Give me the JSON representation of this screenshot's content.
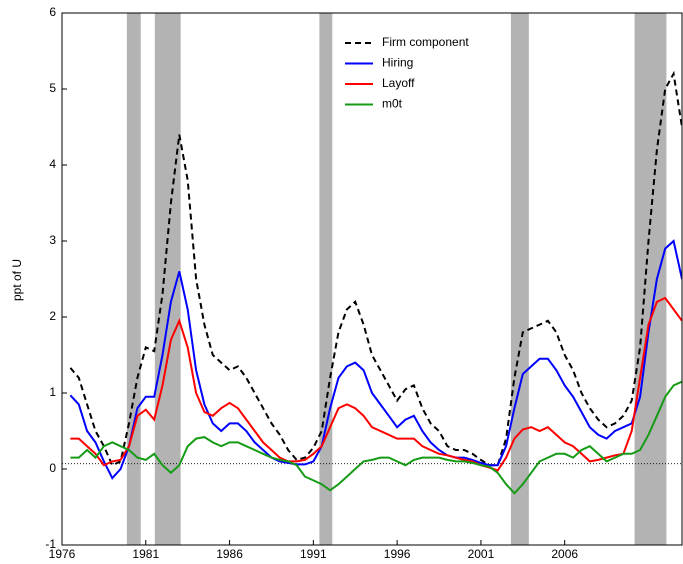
{
  "chart_data": {
    "type": "line",
    "ylabel": "ppt of U",
    "xlim": [
      1976,
      2013
    ],
    "ylim": [
      -1,
      6
    ],
    "xticks": [
      1976,
      1981,
      1986,
      1991,
      1996,
      2001,
      2006
    ],
    "yticks": [
      -1,
      0,
      1,
      2,
      3,
      4,
      5,
      6
    ],
    "shaded_regions": [
      [
        1979.87,
        1980.7
      ],
      [
        1981.54,
        1983.08
      ],
      [
        1991.36,
        1992.13
      ],
      [
        2002.79,
        2003.86
      ],
      [
        2010.17,
        2012.07
      ]
    ],
    "shade_color": "#b3b3b3",
    "hline": 0.07,
    "x": [
      1976.5,
      1977,
      1977.5,
      1978,
      1978.5,
      1979,
      1979.5,
      1980,
      1980.5,
      1981,
      1981.5,
      1982,
      1982.5,
      1983,
      1983.5,
      1984,
      1984.5,
      1985,
      1985.5,
      1986,
      1986.5,
      1987,
      1987.5,
      1988,
      1988.5,
      1989,
      1989.5,
      1990,
      1990.5,
      1991,
      1991.5,
      1992,
      1992.5,
      1993,
      1993.5,
      1994,
      1994.5,
      1995,
      1995.5,
      1996,
      1996.5,
      1997,
      1997.5,
      1998,
      1998.5,
      1999,
      1999.5,
      2000,
      2000.5,
      2001,
      2001.5,
      2002,
      2002.5,
      2003,
      2003.5,
      2004,
      2004.5,
      2005,
      2005.5,
      2006,
      2006.5,
      2007,
      2007.5,
      2008,
      2008.5,
      2009,
      2009.5,
      2010,
      2010.5,
      2011,
      2011.5,
      2012,
      2012.5,
      2013
    ],
    "series": [
      {
        "name": "Firm component",
        "color": "#000000",
        "dashed": true,
        "values": [
          1.33,
          1.2,
          0.85,
          0.5,
          0.3,
          0.05,
          0.1,
          0.6,
          1.2,
          1.6,
          1.55,
          2.3,
          3.5,
          4.4,
          3.8,
          2.5,
          1.9,
          1.5,
          1.4,
          1.3,
          1.35,
          1.2,
          1.0,
          0.8,
          0.6,
          0.45,
          0.25,
          0.12,
          0.15,
          0.28,
          0.5,
          1.2,
          1.8,
          2.1,
          2.2,
          1.9,
          1.5,
          1.3,
          1.1,
          0.9,
          1.05,
          1.1,
          0.8,
          0.6,
          0.5,
          0.3,
          0.25,
          0.25,
          0.2,
          0.12,
          0.05,
          0.05,
          0.4,
          1.2,
          1.8,
          1.85,
          1.9,
          1.95,
          1.8,
          1.5,
          1.3,
          1.0,
          0.8,
          0.65,
          0.55,
          0.6,
          0.7,
          0.9,
          1.6,
          3.0,
          4.2,
          5.0,
          5.2,
          4.5
        ]
      },
      {
        "name": "Hiring",
        "color": "#0000ff",
        "values": [
          0.97,
          0.85,
          0.5,
          0.35,
          0.1,
          -0.12,
          0.0,
          0.3,
          0.8,
          0.95,
          0.95,
          1.5,
          2.2,
          2.6,
          2.1,
          1.3,
          0.85,
          0.6,
          0.5,
          0.6,
          0.6,
          0.5,
          0.35,
          0.25,
          0.15,
          0.1,
          0.08,
          0.06,
          0.06,
          0.1,
          0.3,
          0.8,
          1.2,
          1.35,
          1.4,
          1.3,
          1.0,
          0.85,
          0.7,
          0.55,
          0.65,
          0.7,
          0.5,
          0.35,
          0.25,
          0.18,
          0.15,
          0.15,
          0.12,
          0.08,
          0.05,
          0.05,
          0.3,
          0.8,
          1.25,
          1.35,
          1.45,
          1.45,
          1.3,
          1.1,
          0.95,
          0.75,
          0.55,
          0.45,
          0.4,
          0.5,
          0.55,
          0.6,
          0.95,
          1.8,
          2.5,
          2.9,
          3.0,
          2.5
        ]
      },
      {
        "name": "Layoff",
        "color": "#ff0000",
        "values": [
          0.4,
          0.4,
          0.3,
          0.2,
          0.05,
          0.1,
          0.12,
          0.3,
          0.7,
          0.78,
          0.65,
          1.1,
          1.7,
          1.95,
          1.6,
          1.0,
          0.75,
          0.7,
          0.8,
          0.87,
          0.8,
          0.65,
          0.5,
          0.35,
          0.25,
          0.15,
          0.1,
          0.1,
          0.12,
          0.2,
          0.3,
          0.55,
          0.8,
          0.85,
          0.8,
          0.7,
          0.55,
          0.5,
          0.45,
          0.4,
          0.4,
          0.4,
          0.3,
          0.25,
          0.2,
          0.18,
          0.15,
          0.12,
          0.1,
          0.05,
          0.02,
          -0.02,
          0.15,
          0.4,
          0.52,
          0.55,
          0.5,
          0.55,
          0.45,
          0.35,
          0.3,
          0.2,
          0.1,
          0.12,
          0.15,
          0.18,
          0.2,
          0.5,
          1.2,
          1.9,
          2.2,
          2.25,
          2.1,
          1.95
        ]
      },
      {
        "name": "m0t",
        "color": "#169b16",
        "values": [
          0.15,
          0.15,
          0.25,
          0.15,
          0.3,
          0.35,
          0.3,
          0.25,
          0.15,
          0.12,
          0.2,
          0.05,
          -0.05,
          0.05,
          0.3,
          0.4,
          0.42,
          0.35,
          0.3,
          0.35,
          0.35,
          0.3,
          0.25,
          0.2,
          0.15,
          0.12,
          0.1,
          0.05,
          -0.1,
          -0.15,
          -0.2,
          -0.28,
          -0.2,
          -0.1,
          0.0,
          0.1,
          0.12,
          0.15,
          0.15,
          0.1,
          0.05,
          0.12,
          0.15,
          0.15,
          0.15,
          0.12,
          0.1,
          0.1,
          0.08,
          0.05,
          0.03,
          -0.05,
          -0.2,
          -0.32,
          -0.2,
          -0.05,
          0.1,
          0.15,
          0.2,
          0.2,
          0.15,
          0.25,
          0.3,
          0.2,
          0.1,
          0.15,
          0.2,
          0.2,
          0.25,
          0.45,
          0.7,
          0.95,
          1.1,
          1.15
        ]
      }
    ]
  }
}
